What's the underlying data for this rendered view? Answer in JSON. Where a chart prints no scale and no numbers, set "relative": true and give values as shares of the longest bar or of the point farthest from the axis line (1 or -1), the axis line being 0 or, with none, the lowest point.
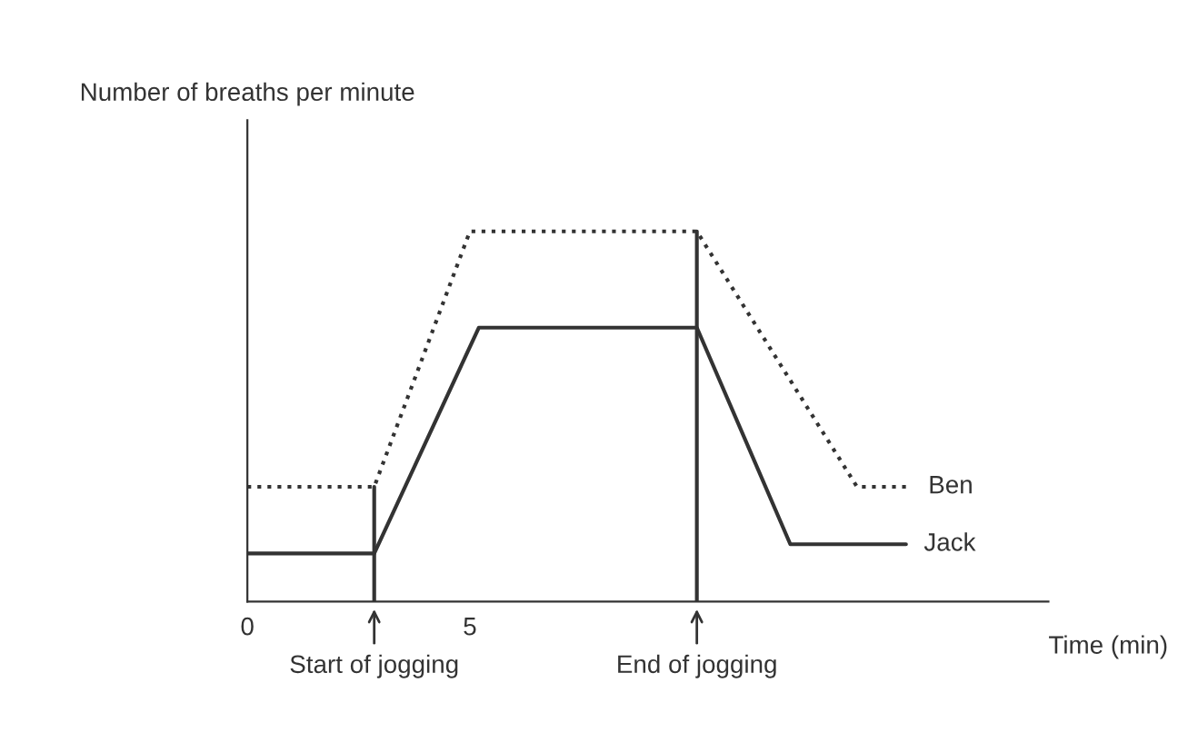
{
  "chart_data": {
    "type": "line",
    "relative": true,
    "ylabel": "Number of breaths per minute",
    "xlabel": "Time (min)",
    "xlim": [
      0,
      18
    ],
    "xticks": [
      0,
      5
    ],
    "grid": false,
    "legend": false,
    "series": [
      {
        "name": "Ben",
        "color": "#333333",
        "line_style": "dotted",
        "x": [
          0,
          2.85,
          5.0,
          10.1,
          13.7,
          14.9
        ],
        "values": [
          0.31,
          0.31,
          1,
          1,
          0.31,
          0.31
        ]
      },
      {
        "name": "Jack",
        "color": "#333333",
        "line_style": "solid",
        "x": [
          0,
          2.85,
          5.2,
          10.1,
          12.2,
          14.8
        ],
        "values": [
          0.13,
          0.13,
          0.74,
          0.74,
          0.155,
          0.155
        ]
      }
    ],
    "ref_lines": [
      {
        "axis": "x",
        "value": 2.85,
        "label": "Start of jogging",
        "color": "#333333"
      },
      {
        "axis": "x",
        "value": 10.1,
        "label": "End of jogging",
        "color": "#333333"
      }
    ]
  }
}
